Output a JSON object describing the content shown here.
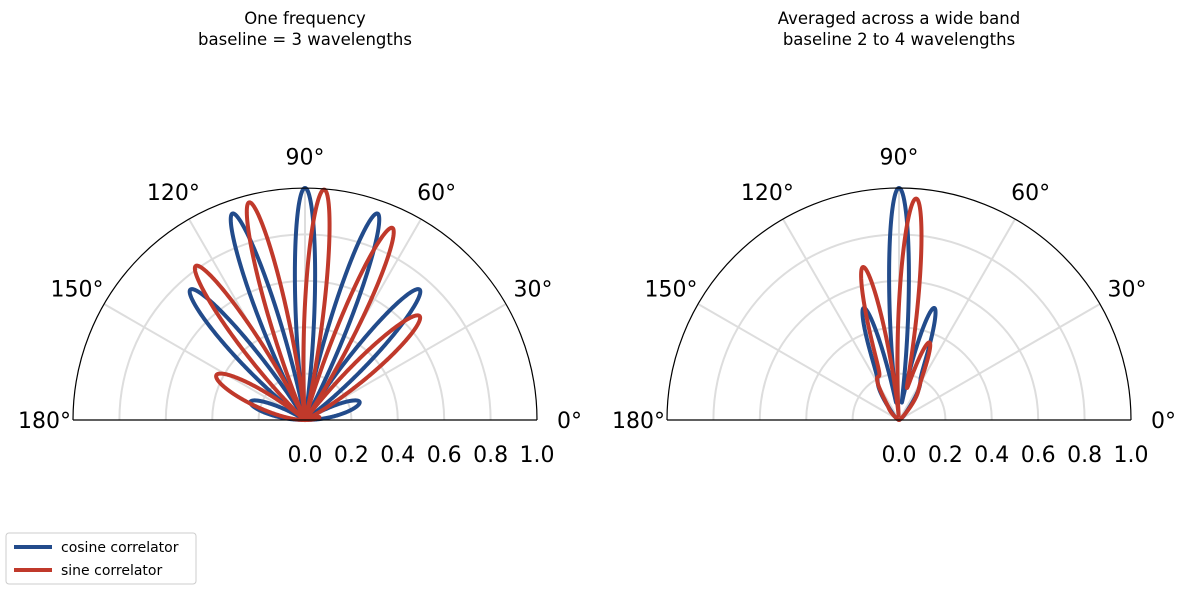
{
  "colors": {
    "cosine": "#224b8b",
    "sine": "#c0392b",
    "grid": "#dddddd",
    "frame": "#000000"
  },
  "legend": {
    "placement": "bottom-left",
    "items": [
      {
        "label": "cosine correlator",
        "color": "#224b8b"
      },
      {
        "label": "sine correlator",
        "color": "#c0392b"
      }
    ]
  },
  "chart_data": [
    {
      "type": "line",
      "projection": "polar",
      "title": [
        "One frequency",
        "baseline = 3 wavelengths"
      ],
      "theta_range_deg": [
        0,
        180
      ],
      "rlim": [
        0,
        1.0
      ],
      "r_tick_labels": [
        "0.0",
        "0.2",
        "0.4",
        "0.6",
        "0.8",
        "1.0"
      ],
      "theta_tick_labels": [
        "0°",
        "30°",
        "60°",
        "90°",
        "120°",
        "150°",
        "180°"
      ],
      "grid": true,
      "baseline_wavelengths": 3,
      "series": [
        {
          "name": "cosine correlator",
          "function": "sin(theta)*(1+cos(2*pi*b*cos(theta)))/2"
        },
        {
          "name": "sine correlator",
          "function": "sin(theta)*(1+sin(2*pi*b*cos(theta)))/2"
        }
      ]
    },
    {
      "type": "line",
      "projection": "polar",
      "title": [
        "Averaged across a wide band",
        "baseline 2 to 4 wavelengths"
      ],
      "theta_range_deg": [
        0,
        180
      ],
      "rlim": [
        0,
        1.0
      ],
      "r_tick_labels": [
        "0.0",
        "0.2",
        "0.4",
        "0.6",
        "0.8",
        "1.0"
      ],
      "theta_tick_labels": [
        "0°",
        "30°",
        "60°",
        "90°",
        "120°",
        "150°",
        "180°"
      ],
      "grid": true,
      "baseline_range_wavelengths": [
        2,
        4
      ],
      "series": [
        {
          "name": "cosine correlator",
          "function": "band-averaged cosine response"
        },
        {
          "name": "sine correlator",
          "function": "band-averaged sine response"
        }
      ]
    }
  ]
}
